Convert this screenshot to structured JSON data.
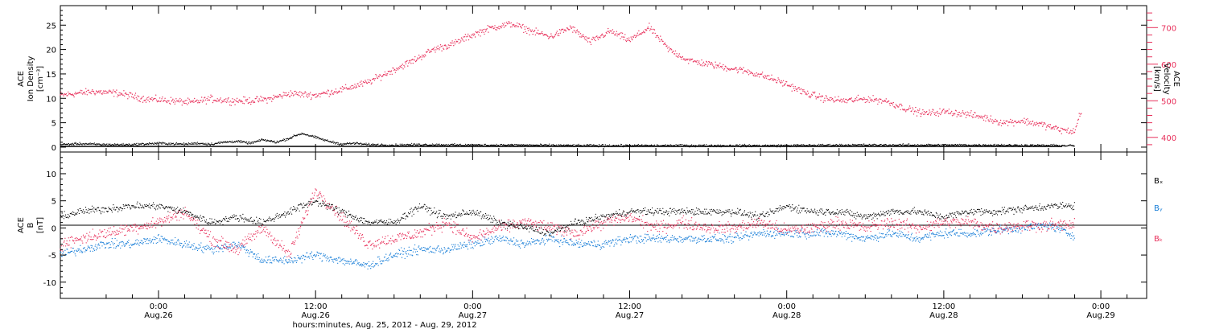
{
  "colors": {
    "density": "#000000",
    "velocity": "#e8315c",
    "bx": "#000000",
    "by": "#1a7fd8",
    "bz": "#e8315c",
    "axis": "#000000"
  },
  "x_title": "hours:minutes, Aug. 25, 2012 - Aug. 29, 2012",
  "x_ticks": [
    {
      "t": 4,
      "line1": "0:00",
      "line2": "Aug.26"
    },
    {
      "t": 16,
      "line1": "12:00",
      "line2": "Aug.26"
    },
    {
      "t": 28,
      "line1": "0:00",
      "line2": "Aug.27"
    },
    {
      "t": 40,
      "line1": "12:00",
      "line2": "Aug.27"
    },
    {
      "t": 52,
      "line1": "0:00",
      "line2": "Aug.28"
    },
    {
      "t": 64,
      "line1": "12:00",
      "line2": "Aug.28"
    },
    {
      "t": 76,
      "line1": "0:00",
      "line2": "Aug.29"
    }
  ],
  "panel1": {
    "ylabel": [
      "ACE",
      "Ion Density",
      "[cm⁻³]"
    ],
    "right_ylabel": [
      "ACE",
      "Velocity",
      "[km/s]"
    ]
  },
  "panel2": {
    "ylabel": [
      "ACE",
      "B",
      "[nT]"
    ],
    "legend": [
      "Bₓ",
      "Bᵧ",
      "Bₖ"
    ]
  },
  "chart_data": [
    {
      "type": "scatter",
      "xlabel": "hours:minutes, Aug. 25, 2012 - Aug. 29, 2012",
      "xlim": [
        -3.5,
        79.5
      ],
      "ylim": [
        -1,
        29
      ],
      "yticks": [
        0,
        5,
        10,
        15,
        20,
        25
      ],
      "right_ylim": [
        360,
        760
      ],
      "right_yticks": [
        400,
        500,
        600,
        700
      ],
      "series": [
        {
          "name": "Ion Density",
          "axis": "left",
          "x": [
            -3.5,
            -2,
            0,
            2,
            4,
            6,
            7,
            8,
            9,
            10,
            11,
            12,
            13,
            14,
            14.5,
            15,
            15.5,
            16,
            17,
            18,
            19,
            20,
            22,
            24,
            28,
            32,
            36,
            40,
            44,
            48,
            52,
            56,
            60,
            64,
            68,
            72,
            74
          ],
          "y": [
            0.5,
            0.7,
            0.5,
            0.5,
            0.8,
            0.6,
            0.8,
            0.6,
            1.0,
            1.2,
            0.8,
            1.5,
            1.0,
            1.8,
            2.4,
            2.8,
            2.4,
            2.0,
            1.2,
            0.6,
            0.8,
            0.5,
            0.4,
            0.5,
            0.4,
            0.4,
            0.3,
            0.3,
            0.3,
            0.3,
            0.3,
            0.4,
            0.4,
            0.4,
            0.4,
            0.3,
            0.3
          ]
        },
        {
          "name": "Velocity",
          "axis": "right",
          "x": [
            -3.5,
            -1,
            1,
            3,
            5,
            6.5,
            8,
            9.5,
            11,
            12.5,
            14,
            16,
            18,
            20,
            22,
            23.5,
            25,
            26.5,
            28,
            29.5,
            31,
            32.5,
            34,
            35.5,
            37,
            38.5,
            40,
            41.5,
            43,
            44.5,
            46,
            47.5,
            49,
            50.5,
            52,
            53.5,
            55,
            56.5,
            58,
            59.5,
            61,
            62.5,
            64,
            65.5,
            67,
            68.5,
            70,
            71.5,
            73,
            74,
            74.5
          ],
          "y": [
            515,
            525,
            520,
            505,
            500,
            495,
            505,
            500,
            500,
            505,
            520,
            515,
            530,
            550,
            585,
            610,
            640,
            655,
            680,
            700,
            710,
            690,
            675,
            700,
            660,
            690,
            665,
            700,
            640,
            610,
            600,
            590,
            580,
            565,
            545,
            520,
            505,
            500,
            505,
            500,
            480,
            465,
            470,
            465,
            455,
            440,
            445,
            435,
            420,
            415,
            475
          ]
        }
      ]
    },
    {
      "type": "scatter",
      "xlabel": "hours:minutes, Aug. 25, 2012 - Aug. 29, 2012",
      "xlim": [
        -3.5,
        79.5
      ],
      "ylim": [
        -13,
        14
      ],
      "yticks": [
        -10,
        -5,
        0,
        5,
        10
      ],
      "series": [
        {
          "name": "Bₓ",
          "x": [
            -3.5,
            -2,
            0,
            2,
            4,
            6,
            8,
            10,
            12,
            14,
            16,
            18,
            20,
            22,
            24,
            26,
            28,
            30,
            32,
            34,
            36,
            38,
            40,
            42,
            44,
            46,
            48,
            50,
            52,
            54,
            56,
            58,
            60,
            62,
            64,
            66,
            68,
            70,
            72,
            74
          ],
          "y": [
            2,
            3,
            3.5,
            4,
            4,
            3,
            1,
            2,
            1,
            3,
            5,
            3,
            1,
            1,
            4,
            2,
            3,
            1,
            0,
            -1,
            1,
            2,
            3,
            3,
            3,
            3,
            3,
            2,
            4,
            3,
            3,
            2,
            3,
            3,
            2,
            3,
            3,
            3.5,
            4,
            4
          ]
        },
        {
          "name": "Bᵧ",
          "x": [
            -3.5,
            -2,
            0,
            2,
            4,
            6,
            8,
            10,
            12,
            14,
            16,
            18,
            20,
            22,
            24,
            26,
            28,
            30,
            32,
            34,
            36,
            38,
            40,
            42,
            44,
            46,
            48,
            50,
            52,
            54,
            56,
            58,
            60,
            62,
            64,
            66,
            68,
            70,
            72,
            74
          ],
          "y": [
            -5,
            -4,
            -3,
            -3,
            -2,
            -3,
            -4,
            -3,
            -6,
            -6,
            -5,
            -6,
            -7,
            -5,
            -4,
            -4,
            -3,
            -2,
            -3,
            -2,
            -3,
            -3,
            -2,
            -2,
            -2,
            -2,
            -2,
            -1,
            -1,
            -1,
            -1,
            -2,
            -1,
            -2,
            -1,
            -1,
            -0.5,
            0,
            0.5,
            -1.5
          ]
        },
        {
          "name": "Bₖ",
          "x": [
            -3.5,
            -2,
            0,
            2,
            4,
            6,
            8,
            10,
            12,
            14,
            16,
            18,
            20,
            22,
            24,
            26,
            28,
            30,
            32,
            34,
            36,
            38,
            40,
            42,
            44,
            46,
            48,
            50,
            52,
            54,
            56,
            58,
            60,
            62,
            64,
            66,
            68,
            70,
            72,
            74
          ],
          "y": [
            -3,
            -2,
            -1,
            0,
            1,
            3,
            -2,
            -4,
            0,
            -5,
            7,
            2,
            -3,
            -2,
            -1,
            1,
            -2,
            0,
            1,
            0,
            -1,
            1,
            2,
            0,
            1,
            0,
            0,
            1,
            -0.5,
            0,
            1,
            0,
            1,
            0,
            1,
            1,
            0,
            0.5,
            0.5,
            0.5
          ]
        }
      ]
    }
  ]
}
